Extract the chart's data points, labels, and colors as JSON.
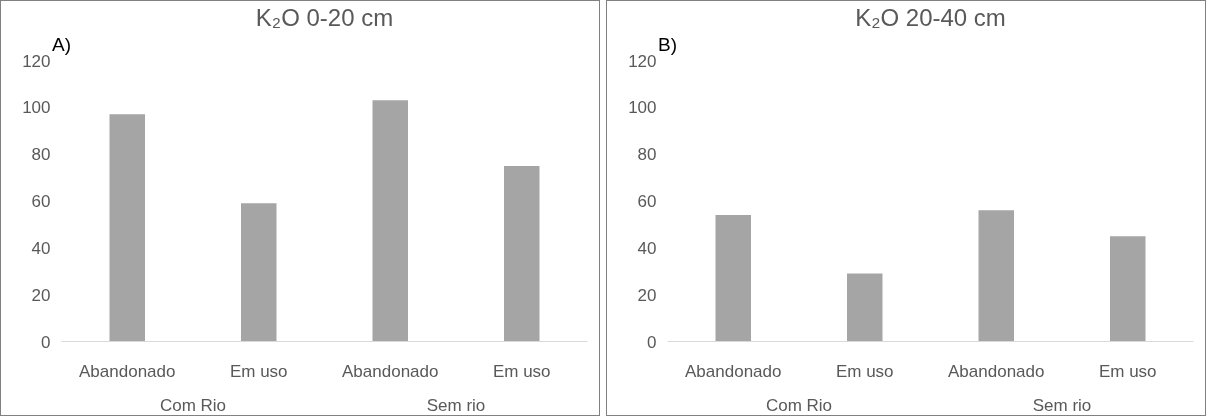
{
  "chart_data": [
    {
      "type": "bar",
      "title": "K₂O 0-20 cm",
      "categories": [
        "Abandonado",
        "Em uso",
        "Abandonado",
        "Em uso"
      ],
      "values": [
        97,
        59,
        103,
        75
      ],
      "color": "#a5a5a5",
      "ylim": [
        0,
        120
      ],
      "yticks": [
        0,
        20,
        40,
        60,
        80,
        100,
        120
      ],
      "grid": false,
      "annotations": [
        "A)",
        "Com Rio",
        "Sem rio"
      ]
    },
    {
      "type": "bar",
      "title": "K₂O 20-40 cm",
      "categories": [
        "Abandonado",
        "Em uso",
        "Abandonado",
        "Em uso"
      ],
      "values": [
        54,
        29,
        56,
        45
      ],
      "color": "#a5a5a5",
      "ylim": [
        0,
        120
      ],
      "yticks": [
        0,
        20,
        40,
        60,
        80,
        100,
        120
      ],
      "grid": false,
      "annotations": [
        "B)",
        "Com Rio",
        "Sem rio"
      ]
    }
  ]
}
